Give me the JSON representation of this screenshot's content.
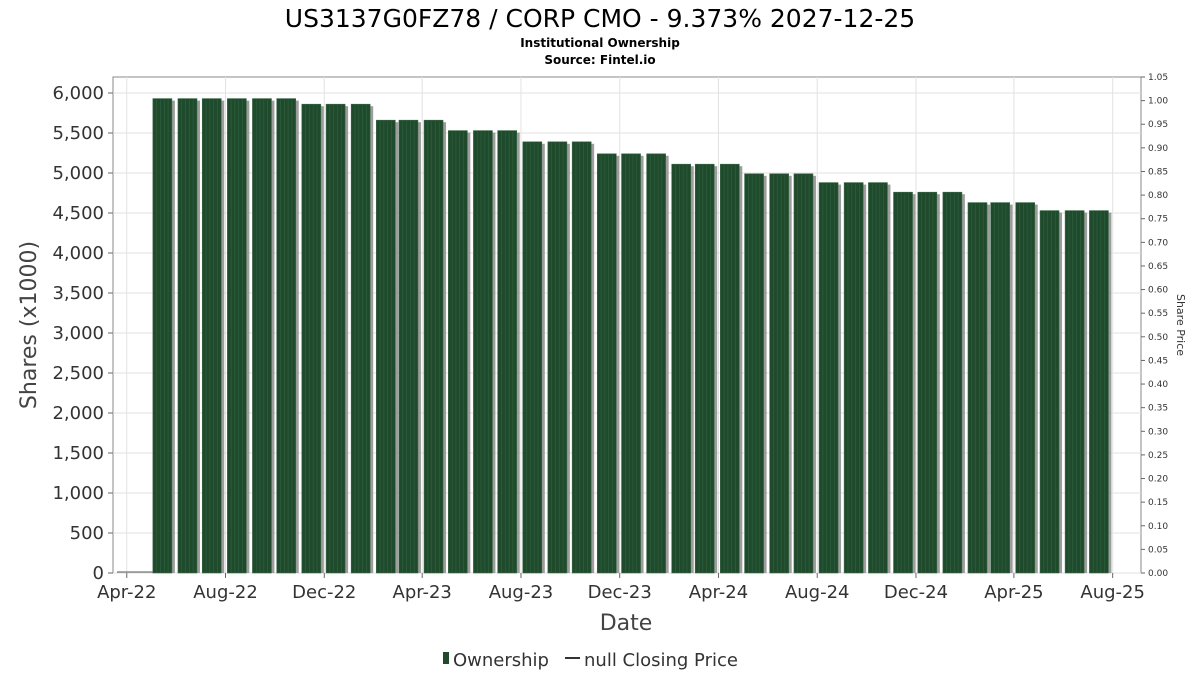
{
  "chart_data": {
    "type": "bar",
    "title": "US3137G0FZ78 / CORP CMO - 9.373% 2027-12-25",
    "subtitle_lines": [
      "Institutional Ownership",
      "Source: Fintel.io"
    ],
    "xlabel": "Date",
    "ylabel": "Shares (x1000)",
    "y2label": "Share Price",
    "x_ticks": [
      "Apr-22",
      "Aug-22",
      "Dec-22",
      "Apr-23",
      "Aug-23",
      "Dec-23",
      "Apr-24",
      "Aug-24",
      "Dec-24",
      "Apr-25",
      "Aug-25"
    ],
    "x_range": [
      "2022-03-15",
      "2025-09-05"
    ],
    "y_ticks": [
      "0",
      "500",
      "1,000",
      "1,500",
      "2,000",
      "2,500",
      "3,000",
      "3,500",
      "4,000",
      "4,500",
      "5,000",
      "5,500",
      "6,000"
    ],
    "ylim": [
      0,
      6200
    ],
    "y2_ticks": [
      "0.00",
      "0.05",
      "0.10",
      "0.15",
      "0.20",
      "0.25",
      "0.30",
      "0.35",
      "0.40",
      "0.45",
      "0.50",
      "0.55",
      "0.60",
      "0.65",
      "0.70",
      "0.75",
      "0.80",
      "0.85",
      "0.90",
      "0.95",
      "1.00",
      "1.05"
    ],
    "y2lim": [
      0,
      1.05
    ],
    "grid": true,
    "legend_position": "bottom",
    "series": [
      {
        "name": "Ownership",
        "color": "#1f4a2c",
        "x": [
          "2022-05-15",
          "2022-06-15",
          "2022-07-15",
          "2022-08-15",
          "2022-09-15",
          "2022-10-15",
          "2022-11-15",
          "2022-12-15",
          "2023-01-15",
          "2023-02-15",
          "2023-03-15",
          "2023-04-15",
          "2023-05-15",
          "2023-06-15",
          "2023-07-15",
          "2023-08-15",
          "2023-09-15",
          "2023-10-15",
          "2023-11-15",
          "2023-12-15",
          "2024-01-15",
          "2024-02-15",
          "2024-03-15",
          "2024-04-15",
          "2024-05-15",
          "2024-06-15",
          "2024-07-15",
          "2024-08-15",
          "2024-09-15",
          "2024-10-15",
          "2024-11-15",
          "2024-12-15",
          "2025-01-15",
          "2025-02-15",
          "2025-03-15",
          "2025-04-15",
          "2025-05-15",
          "2025-06-15",
          "2025-07-15"
        ],
        "values": [
          5930,
          5930,
          5930,
          5930,
          5930,
          5930,
          5860,
          5860,
          5860,
          5660,
          5660,
          5660,
          5530,
          5530,
          5530,
          5390,
          5390,
          5390,
          5240,
          5240,
          5240,
          5110,
          5110,
          5110,
          4990,
          4990,
          4990,
          4880,
          4880,
          4880,
          4760,
          4760,
          4760,
          4630,
          4630,
          4630,
          4530,
          4530,
          4530
        ]
      },
      {
        "name": "null Closing Price",
        "color": "#333333",
        "values": []
      }
    ]
  }
}
